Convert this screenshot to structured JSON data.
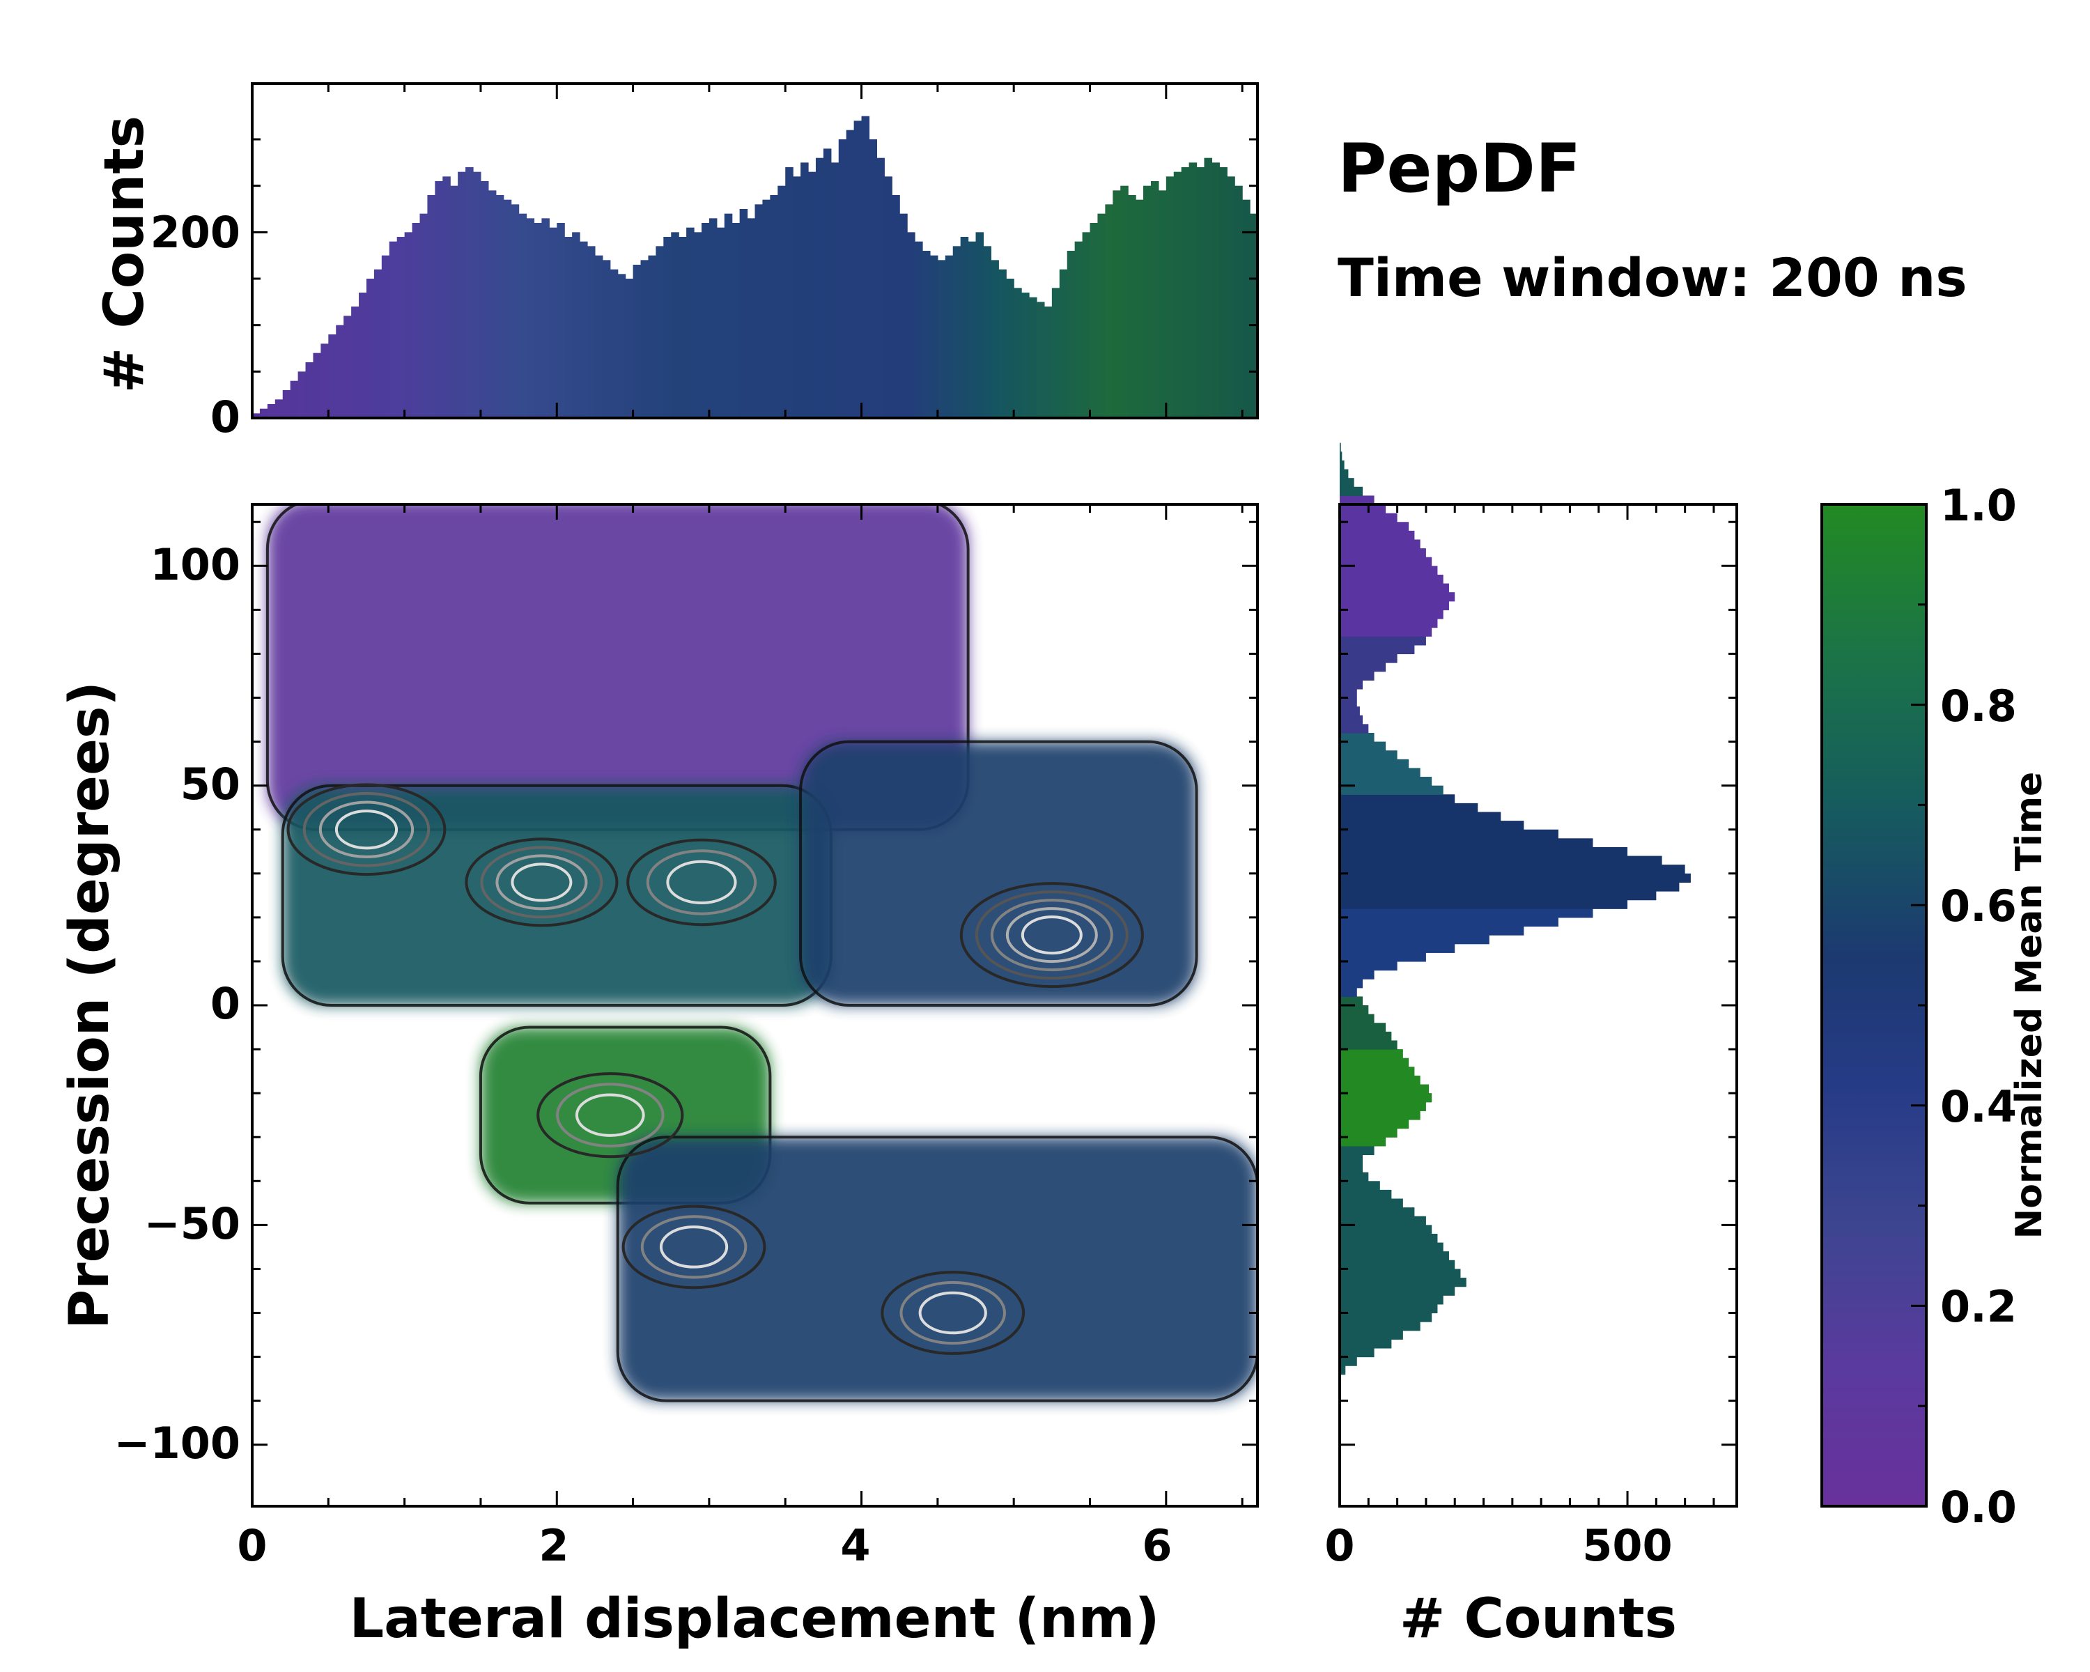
{
  "chart_data": {
    "type": "heatmap",
    "title": "PepDF",
    "subtitle": "Time window: 200 ns",
    "main": {
      "xlabel": "Lateral displacement (nm)",
      "ylabel": "Precession (degrees)",
      "xlim": [
        0,
        6.6
      ],
      "ylim": [
        -114,
        114
      ],
      "xticks": [
        "0",
        "2",
        "4",
        "6"
      ],
      "yticks": [
        "100",
        "50",
        "0",
        "−50",
        "−100"
      ],
      "regions": [
        {
          "name": "upper-left",
          "x_range": [
            0.1,
            4.7
          ],
          "y_range": [
            40,
            115
          ],
          "mean_time": 0.1
        },
        {
          "name": "central-band",
          "x_range": [
            0.2,
            3.8
          ],
          "y_range": [
            0,
            50
          ],
          "mean_time": 0.7
        },
        {
          "name": "right-peak",
          "x_range": [
            3.6,
            6.2
          ],
          "y_range": [
            0,
            60
          ],
          "mean_time": 0.6
        },
        {
          "name": "lower-green",
          "x_range": [
            1.5,
            3.4
          ],
          "y_range": [
            -45,
            -5
          ],
          "mean_time": 0.95
        },
        {
          "name": "lower-band",
          "x_range": [
            2.4,
            6.6
          ],
          "y_range": [
            -90,
            -30
          ],
          "mean_time": 0.6
        }
      ],
      "density_peaks": [
        {
          "x": 0.75,
          "y": 40,
          "level": 0.6
        },
        {
          "x": 1.9,
          "y": 28,
          "level": 0.5
        },
        {
          "x": 2.95,
          "y": 28,
          "level": 0.45
        },
        {
          "x": 5.25,
          "y": 16,
          "level": 1.0
        },
        {
          "x": 2.35,
          "y": -25,
          "level": 0.4
        },
        {
          "x": 2.9,
          "y": -55,
          "level": 0.35
        },
        {
          "x": 4.6,
          "y": -70,
          "level": 0.35
        }
      ]
    },
    "top_histogram": {
      "ylabel": "# Counts",
      "yticks": [
        "0",
        "200"
      ],
      "ylim": [
        0,
        360
      ],
      "x_start": 0,
      "bin_width": 0.05,
      "counts": [
        5,
        10,
        15,
        20,
        30,
        40,
        50,
        60,
        70,
        80,
        90,
        100,
        110,
        120,
        135,
        150,
        160,
        175,
        190,
        195,
        200,
        210,
        220,
        240,
        255,
        260,
        250,
        265,
        270,
        265,
        255,
        245,
        240,
        235,
        230,
        220,
        215,
        210,
        215,
        205,
        210,
        195,
        200,
        190,
        185,
        175,
        170,
        160,
        155,
        150,
        165,
        170,
        175,
        185,
        195,
        200,
        195,
        205,
        200,
        210,
        215,
        205,
        220,
        210,
        225,
        215,
        230,
        235,
        240,
        250,
        270,
        260,
        275,
        265,
        280,
        290,
        275,
        300,
        310,
        320,
        325,
        300,
        280,
        260,
        240,
        220,
        200,
        190,
        180,
        175,
        170,
        175,
        185,
        195,
        190,
        200,
        185,
        170,
        160,
        150,
        140,
        135,
        130,
        125,
        120,
        140,
        160,
        180,
        190,
        200,
        210,
        220,
        230,
        245,
        250,
        240,
        235,
        250,
        255,
        245,
        260,
        265,
        270,
        275,
        270,
        280,
        275,
        270,
        260,
        250,
        235,
        220,
        210,
        200,
        180,
        165,
        150,
        130,
        110,
        95,
        80,
        60,
        45,
        30,
        20,
        15,
        12,
        10,
        10,
        8,
        6,
        5,
        4,
        4,
        3,
        2
      ],
      "colors": [
        "#57359b",
        "#4d3d9c",
        "#374a8f",
        "#23427a",
        "#233d7a",
        "#155462",
        "#1e6a3c",
        "#16574a"
      ],
      "color_stops": [
        0.0,
        0.12,
        0.22,
        0.35,
        0.55,
        0.62,
        0.72,
        0.85
      ]
    },
    "right_histogram": {
      "xlabel": "# Counts",
      "xticks": [
        "0",
        "500"
      ],
      "xlim": [
        0,
        690
      ],
      "y_start": -84,
      "bin_width": 2,
      "counts": [
        10,
        30,
        60,
        90,
        110,
        140,
        160,
        170,
        180,
        200,
        220,
        210,
        200,
        190,
        180,
        170,
        160,
        150,
        130,
        110,
        90,
        70,
        50,
        40,
        40,
        60,
        80,
        100,
        120,
        140,
        150,
        160,
        155,
        140,
        130,
        120,
        110,
        100,
        90,
        80,
        60,
        50,
        40,
        30,
        40,
        60,
        100,
        150,
        200,
        260,
        320,
        380,
        440,
        500,
        550,
        590,
        610,
        600,
        560,
        500,
        440,
        380,
        320,
        280,
        240,
        200,
        180,
        160,
        140,
        120,
        100,
        80,
        60,
        50,
        40,
        35,
        30,
        30,
        40,
        60,
        80,
        100,
        130,
        150,
        160,
        170,
        180,
        190,
        200,
        190,
        180,
        170,
        160,
        150,
        140,
        130,
        120,
        100,
        80,
        60,
        40,
        25,
        15,
        8,
        4,
        2
      ],
      "color_by_bin": [
        [
          -84,
          -32,
          "#165757"
        ],
        [
          -32,
          -10,
          "#238a23"
        ],
        [
          -10,
          2,
          "#18603f"
        ],
        [
          2,
          22,
          "#1c3d82"
        ],
        [
          22,
          48,
          "#16336a"
        ],
        [
          48,
          62,
          "#1d5f70"
        ],
        [
          62,
          84,
          "#3a3a8a"
        ],
        [
          84,
          116,
          "#5a34a0"
        ]
      ]
    },
    "colorbar": {
      "label": "Normalized Mean Time",
      "min": 0.0,
      "max": 1.0,
      "ticks": [
        "0.0",
        "0.2",
        "0.4",
        "0.6",
        "0.8",
        "1.0"
      ],
      "colormap": [
        "#68319c",
        "#5a3a9e",
        "#3d4590",
        "#263b86",
        "#1c3a70",
        "#165c5e",
        "#1b7447",
        "#238a23"
      ]
    }
  }
}
